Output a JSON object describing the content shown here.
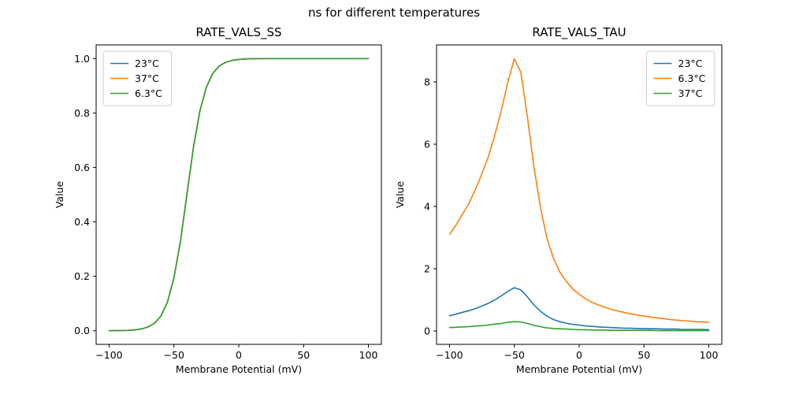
{
  "figure": {
    "suptitle": "ns for different temperatures",
    "background_color": "#ffffff"
  },
  "colors": {
    "blue": "#1f77b4",
    "orange": "#ff7f0e",
    "green": "#2ca02c"
  },
  "chart_data": [
    {
      "type": "line",
      "title": "RATE_VALS_SS",
      "xlabel": "Membrane Potential (mV)",
      "ylabel": "Value",
      "xlim": [
        -110,
        110
      ],
      "ylim": [
        -0.05,
        1.05
      ],
      "xticks": [
        -100,
        -50,
        0,
        50,
        100
      ],
      "xtick_labels": [
        "−100",
        "−50",
        "0",
        "50",
        "100"
      ],
      "yticks": [
        0.0,
        0.2,
        0.4,
        0.6,
        0.8,
        1.0
      ],
      "ytick_labels": [
        "0.0",
        "0.2",
        "0.4",
        "0.6",
        "0.8",
        "1.0"
      ],
      "grid": false,
      "legend_position": "top-left",
      "x": [
        -100,
        -95,
        -90,
        -85,
        -80,
        -75,
        -70,
        -65,
        -60,
        -55,
        -50,
        -45,
        -40,
        -35,
        -30,
        -25,
        -20,
        -15,
        -10,
        -5,
        0,
        5,
        10,
        15,
        20,
        25,
        30,
        35,
        40,
        45,
        50,
        55,
        60,
        65,
        70,
        75,
        80,
        85,
        90,
        95,
        100
      ],
      "series": [
        {
          "name": "23°C",
          "color": "#1f77b4",
          "values": [
            0.0002,
            0.0004,
            0.0008,
            0.0016,
            0.0033,
            0.0067,
            0.0136,
            0.0273,
            0.0543,
            0.1051,
            0.1934,
            0.3287,
            0.5,
            0.6713,
            0.8066,
            0.8949,
            0.9457,
            0.9727,
            0.9864,
            0.9933,
            0.9967,
            0.9984,
            0.9992,
            0.9996,
            0.9998,
            0.9999,
            1.0,
            1.0,
            1.0,
            1.0,
            1.0,
            1.0,
            1.0,
            1.0,
            1.0,
            1.0,
            1.0,
            1.0,
            1.0,
            1.0,
            1.0
          ]
        },
        {
          "name": "37°C",
          "color": "#ff7f0e",
          "values": [
            0.0002,
            0.0004,
            0.0008,
            0.0016,
            0.0033,
            0.0067,
            0.0136,
            0.0273,
            0.0543,
            0.1051,
            0.1934,
            0.3287,
            0.5,
            0.6713,
            0.8066,
            0.8949,
            0.9457,
            0.9727,
            0.9864,
            0.9933,
            0.9967,
            0.9984,
            0.9992,
            0.9996,
            0.9998,
            0.9999,
            1.0,
            1.0,
            1.0,
            1.0,
            1.0,
            1.0,
            1.0,
            1.0,
            1.0,
            1.0,
            1.0,
            1.0,
            1.0,
            1.0,
            1.0
          ]
        },
        {
          "name": "6.3°C",
          "color": "#2ca02c",
          "values": [
            0.0002,
            0.0004,
            0.0008,
            0.0016,
            0.0033,
            0.0067,
            0.0136,
            0.0273,
            0.0543,
            0.1051,
            0.1934,
            0.3287,
            0.5,
            0.6713,
            0.8066,
            0.8949,
            0.9457,
            0.9727,
            0.9864,
            0.9933,
            0.9967,
            0.9984,
            0.9992,
            0.9996,
            0.9998,
            0.9999,
            1.0,
            1.0,
            1.0,
            1.0,
            1.0,
            1.0,
            1.0,
            1.0,
            1.0,
            1.0,
            1.0,
            1.0,
            1.0,
            1.0,
            1.0
          ]
        }
      ]
    },
    {
      "type": "line",
      "title": "RATE_VALS_TAU",
      "xlabel": "Membrane Potential (mV)",
      "ylabel": "Value",
      "xlim": [
        -110,
        110
      ],
      "ylim": [
        -0.43,
        9.19
      ],
      "xticks": [
        -100,
        -50,
        0,
        50,
        100
      ],
      "xtick_labels": [
        "−100",
        "−50",
        "0",
        "50",
        "100"
      ],
      "yticks": [
        0,
        2,
        4,
        6,
        8
      ],
      "ytick_labels": [
        "0",
        "2",
        "4",
        "6",
        "8"
      ],
      "grid": false,
      "legend_position": "top-right",
      "x": [
        -100,
        -95,
        -90,
        -85,
        -80,
        -75,
        -70,
        -65,
        -60,
        -55,
        -50,
        -45,
        -40,
        -35,
        -30,
        -25,
        -20,
        -15,
        -10,
        -5,
        0,
        5,
        10,
        15,
        20,
        25,
        30,
        35,
        40,
        45,
        50,
        55,
        60,
        65,
        70,
        75,
        80,
        85,
        90,
        95,
        100
      ],
      "series": [
        {
          "name": "23°C",
          "color": "#1f77b4",
          "values": [
            0.49,
            0.54,
            0.6,
            0.65,
            0.72,
            0.8,
            0.89,
            1.0,
            1.13,
            1.27,
            1.39,
            1.32,
            1.1,
            0.84,
            0.64,
            0.48,
            0.37,
            0.3,
            0.25,
            0.21,
            0.19,
            0.16,
            0.15,
            0.13,
            0.12,
            0.11,
            0.1,
            0.09,
            0.09,
            0.08,
            0.08,
            0.07,
            0.07,
            0.06,
            0.06,
            0.06,
            0.05,
            0.05,
            0.05,
            0.05,
            0.04
          ]
        },
        {
          "name": "6.3°C",
          "color": "#ff7f0e",
          "values": [
            3.1,
            3.4,
            3.75,
            4.1,
            4.55,
            5.05,
            5.6,
            6.3,
            7.1,
            8.0,
            8.75,
            8.3,
            6.9,
            5.3,
            4.0,
            3.0,
            2.35,
            1.9,
            1.6,
            1.35,
            1.18,
            1.03,
            0.92,
            0.83,
            0.76,
            0.69,
            0.64,
            0.59,
            0.55,
            0.51,
            0.48,
            0.45,
            0.42,
            0.4,
            0.37,
            0.35,
            0.33,
            0.32,
            0.3,
            0.29,
            0.28
          ]
        },
        {
          "name": "37°C",
          "color": "#2ca02c",
          "values": [
            0.11,
            0.12,
            0.13,
            0.14,
            0.16,
            0.17,
            0.19,
            0.22,
            0.24,
            0.28,
            0.3,
            0.29,
            0.24,
            0.18,
            0.14,
            0.1,
            0.08,
            0.07,
            0.06,
            0.05,
            0.04,
            0.04,
            0.03,
            0.03,
            0.03,
            0.02,
            0.02,
            0.02,
            0.02,
            0.02,
            0.02,
            0.02,
            0.01,
            0.01,
            0.01,
            0.01,
            0.01,
            0.01,
            0.01,
            0.01,
            0.01
          ]
        }
      ]
    }
  ]
}
